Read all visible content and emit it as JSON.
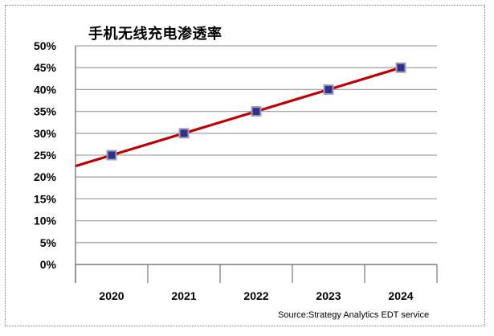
{
  "chart_data": {
    "type": "line",
    "title": "手机无线充电渗透率",
    "source": "Source:Strategy Analytics EDT service",
    "categories": [
      "2020",
      "2021",
      "2022",
      "2023",
      "2024"
    ],
    "series": [
      {
        "values": [
          25,
          30,
          35,
          40,
          45
        ]
      }
    ],
    "trend_line": {
      "slope": 5,
      "intercept_at_first": 25,
      "color": "#c00000"
    },
    "yticks": [
      "0%",
      "5%",
      "10%",
      "15%",
      "20%",
      "25%",
      "30%",
      "35%",
      "40%",
      "45%",
      "50%"
    ],
    "ylim": [
      0,
      50
    ],
    "grid": true,
    "colors": {
      "marker_fill": "#2e3192",
      "marker_stroke": "#a0a0b0",
      "line": "#c00000",
      "grid": "#a6a6a6"
    }
  }
}
